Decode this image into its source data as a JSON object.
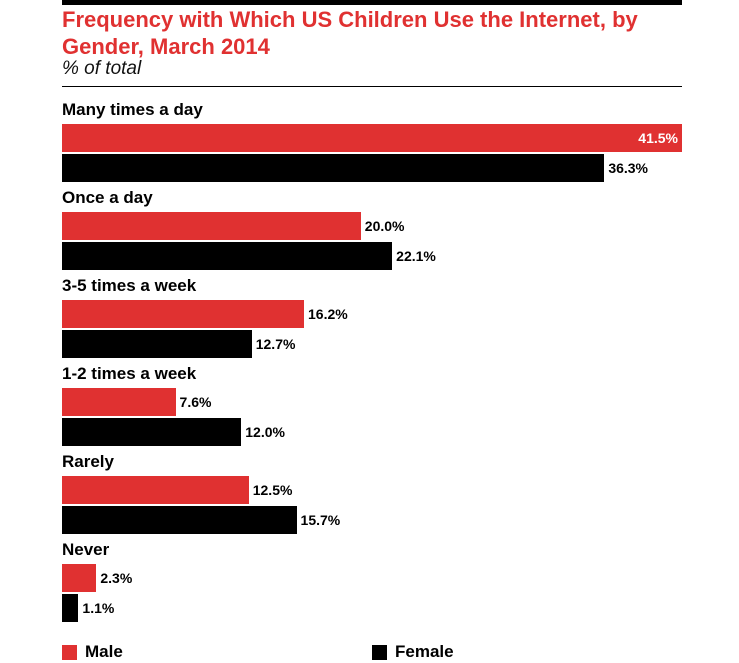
{
  "chart_data": {
    "type": "bar",
    "orientation": "horizontal",
    "title": "Frequency with Which US Children Use the Internet, by Gender, March 2014",
    "subtitle": "% of total",
    "categories": [
      "Many times a day",
      "Once a day",
      "3-5 times a week",
      "1-2 times a week",
      "Rarely",
      "Never"
    ],
    "series": [
      {
        "name": "Male",
        "color": "#e03131",
        "values": [
          41.5,
          20.0,
          16.2,
          7.6,
          12.5,
          2.3
        ]
      },
      {
        "name": "Female",
        "color": "#000000",
        "values": [
          36.3,
          22.1,
          12.7,
          12.0,
          15.7,
          1.1
        ]
      }
    ],
    "value_labels": {
      "Male": [
        "41.5%",
        "20.0%",
        "16.2%",
        "7.6%",
        "12.5%",
        "2.3%"
      ],
      "Female": [
        "36.3%",
        "22.1%",
        "12.7%",
        "12.0%",
        "15.7%",
        "1.1%"
      ]
    },
    "xlim": [
      0,
      41.5
    ],
    "grid": false,
    "legend": "bottom-left"
  }
}
